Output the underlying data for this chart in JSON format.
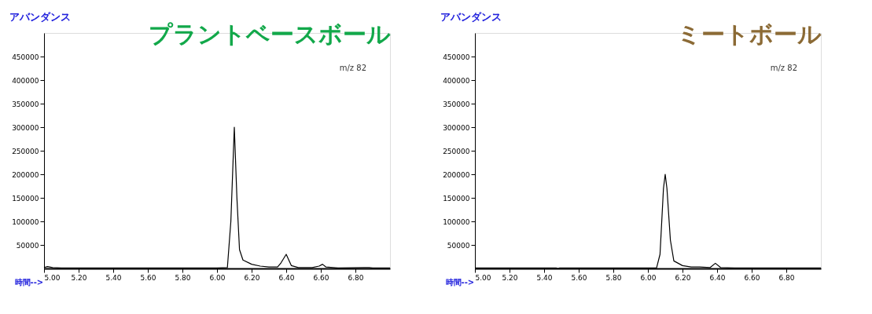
{
  "chart_data": [
    {
      "type": "line",
      "title": "プラントベースボール",
      "xlabel": "時間-->",
      "ylabel": "アバンダンス",
      "annotations": [
        "m/z 82"
      ],
      "xlim": [
        5.0,
        7.0
      ],
      "xticks": [
        {
          "value": 5.0,
          "label": "5.00"
        },
        {
          "value": 5.2,
          "label": "5.20"
        },
        {
          "value": 5.4,
          "label": "5.40"
        },
        {
          "value": 5.6,
          "label": "5.60"
        },
        {
          "value": 5.8,
          "label": "5.80"
        },
        {
          "value": 6.0,
          "label": "6.00"
        },
        {
          "value": 6.2,
          "label": "6.20"
        },
        {
          "value": 6.4,
          "label": "6.40"
        },
        {
          "value": 6.6,
          "label": "6.60"
        },
        {
          "value": 6.8,
          "label": "6.80"
        }
      ],
      "ylim": [
        0,
        500000
      ],
      "yticks": [
        50000,
        100000,
        150000,
        200000,
        250000,
        300000,
        350000,
        400000,
        450000
      ],
      "grid": false,
      "series": [
        {
          "color": "#000000",
          "x": [
            5.0,
            5.02,
            5.05,
            5.1,
            5.5,
            6.0,
            6.06,
            6.08,
            6.1,
            6.115,
            6.13,
            6.15,
            6.2,
            6.25,
            6.3,
            6.35,
            6.37,
            6.4,
            6.43,
            6.47,
            6.55,
            6.59,
            6.61,
            6.63,
            6.7,
            6.85,
            6.88,
            6.9,
            7.0
          ],
          "values": [
            2000,
            4000,
            2000,
            1000,
            1000,
            1000,
            2000,
            100000,
            300000,
            150000,
            40000,
            18000,
            9000,
            5000,
            3000,
            3000,
            12000,
            30000,
            6000,
            2000,
            2000,
            5000,
            9000,
            3000,
            1000,
            2000,
            2000,
            1000,
            1000
          ]
        }
      ]
    },
    {
      "type": "line",
      "title": "ミートボール",
      "xlabel": "時間-->",
      "ylabel": "アバンダンス",
      "annotations": [
        "m/z 82"
      ],
      "xlim": [
        5.0,
        7.0
      ],
      "xticks": [
        {
          "value": 5.0,
          "label": "5.00"
        },
        {
          "value": 5.2,
          "label": "5.20"
        },
        {
          "value": 5.4,
          "label": "5.40"
        },
        {
          "value": 5.6,
          "label": "5.60"
        },
        {
          "value": 5.8,
          "label": "5.80"
        },
        {
          "value": 6.0,
          "label": "6.00"
        },
        {
          "value": 6.2,
          "label": "6.20"
        },
        {
          "value": 6.4,
          "label": "6.40"
        },
        {
          "value": 6.6,
          "label": "6.60"
        },
        {
          "value": 6.8,
          "label": "6.80"
        }
      ],
      "ylim": [
        0,
        500000
      ],
      "yticks": [
        50000,
        100000,
        150000,
        200000,
        250000,
        300000,
        350000,
        400000,
        450000
      ],
      "grid": false,
      "series": [
        {
          "color": "#000000",
          "x": [
            5.0,
            5.47,
            5.48,
            5.49,
            6.05,
            6.07,
            6.09,
            6.1,
            6.11,
            6.13,
            6.15,
            6.2,
            6.25,
            6.3,
            6.36,
            6.39,
            6.42,
            6.5,
            7.0
          ],
          "values": [
            1000,
            1000,
            0,
            1000,
            1000,
            30000,
            170000,
            200000,
            170000,
            60000,
            16000,
            6000,
            3000,
            3000,
            2000,
            11000,
            2000,
            1000,
            1000
          ]
        }
      ]
    }
  ]
}
